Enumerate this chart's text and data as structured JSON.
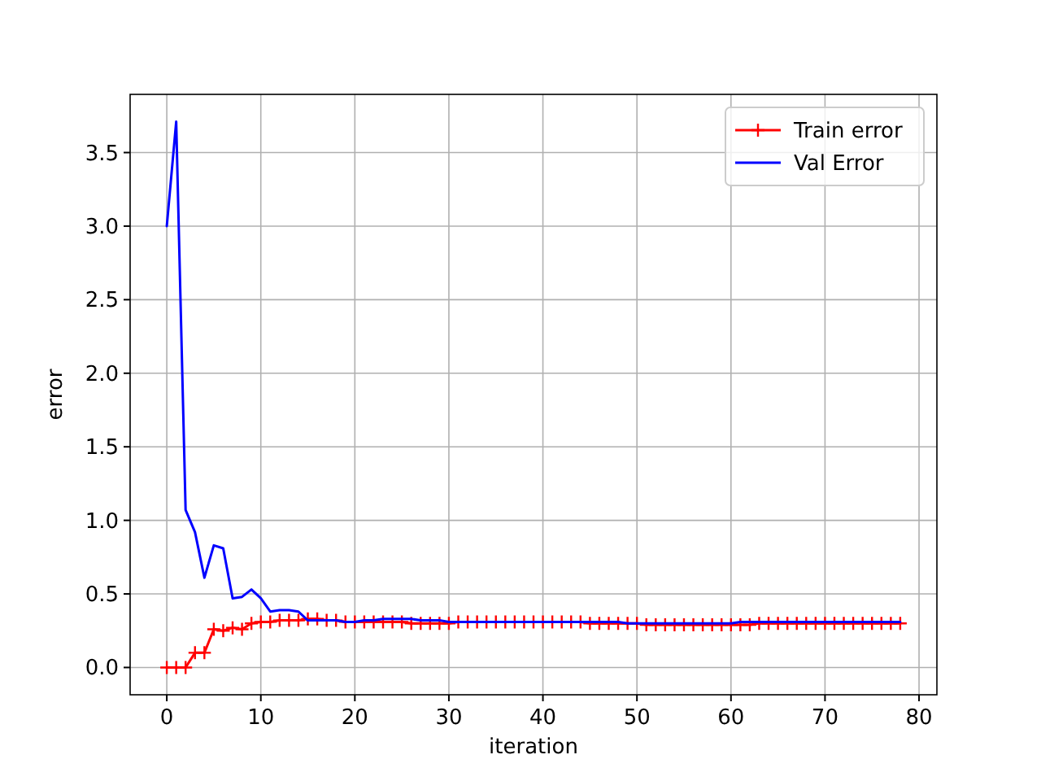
{
  "chart_data": {
    "type": "line",
    "xlabel": "iteration",
    "ylabel": "error",
    "x": [
      0,
      1,
      2,
      3,
      4,
      5,
      6,
      7,
      8,
      9,
      10,
      11,
      12,
      13,
      14,
      15,
      16,
      17,
      18,
      19,
      20,
      21,
      22,
      23,
      24,
      25,
      26,
      27,
      28,
      29,
      30,
      31,
      32,
      33,
      34,
      35,
      36,
      37,
      38,
      39,
      40,
      41,
      42,
      43,
      44,
      45,
      46,
      47,
      48,
      49,
      50,
      51,
      52,
      53,
      54,
      55,
      56,
      57,
      58,
      59,
      60,
      61,
      62,
      63,
      64,
      65,
      66,
      67,
      68,
      69,
      70,
      71,
      72,
      73,
      74,
      75,
      76,
      77,
      78
    ],
    "series": [
      {
        "name": "Train error",
        "color": "#ff0000",
        "marker": "cross",
        "values": [
          0,
          0,
          0,
          0.1,
          0.1,
          0.26,
          0.25,
          0.27,
          0.26,
          0.3,
          0.31,
          0.31,
          0.32,
          0.32,
          0.32,
          0.33,
          0.33,
          0.32,
          0.32,
          0.31,
          0.31,
          0.31,
          0.31,
          0.31,
          0.31,
          0.31,
          0.3,
          0.3,
          0.3,
          0.3,
          0.3,
          0.31,
          0.31,
          0.31,
          0.31,
          0.31,
          0.31,
          0.31,
          0.31,
          0.31,
          0.31,
          0.31,
          0.31,
          0.31,
          0.31,
          0.3,
          0.3,
          0.3,
          0.3,
          0.3,
          0.3,
          0.29,
          0.29,
          0.29,
          0.29,
          0.29,
          0.29,
          0.29,
          0.29,
          0.29,
          0.29,
          0.29,
          0.29,
          0.3,
          0.3,
          0.3,
          0.3,
          0.3,
          0.3,
          0.3,
          0.3,
          0.3,
          0.3,
          0.3,
          0.3,
          0.3,
          0.3,
          0.3,
          0.3
        ]
      },
      {
        "name": "Val Error",
        "color": "#0000ff",
        "marker": "none",
        "values": [
          3.0,
          3.71,
          1.07,
          0.92,
          0.61,
          0.83,
          0.81,
          0.47,
          0.48,
          0.53,
          0.47,
          0.38,
          0.39,
          0.39,
          0.38,
          0.32,
          0.32,
          0.32,
          0.32,
          0.31,
          0.31,
          0.32,
          0.32,
          0.33,
          0.33,
          0.33,
          0.33,
          0.32,
          0.32,
          0.32,
          0.31,
          0.31,
          0.31,
          0.31,
          0.31,
          0.31,
          0.31,
          0.31,
          0.31,
          0.31,
          0.31,
          0.31,
          0.31,
          0.31,
          0.31,
          0.31,
          0.31,
          0.31,
          0.31,
          0.3,
          0.3,
          0.3,
          0.3,
          0.3,
          0.3,
          0.3,
          0.3,
          0.3,
          0.3,
          0.3,
          0.3,
          0.31,
          0.31,
          0.31,
          0.31,
          0.31,
          0.31,
          0.31,
          0.31,
          0.31,
          0.31,
          0.31,
          0.31,
          0.31,
          0.31,
          0.31,
          0.31,
          0.31,
          0.31
        ]
      }
    ],
    "xlim": [
      -3.9,
      81.9
    ],
    "ylim": [
      -0.1855,
      3.8955
    ],
    "xticks": [
      0,
      10,
      20,
      30,
      40,
      50,
      60,
      70,
      80
    ],
    "yticks": [
      {
        "value": 0,
        "label": "0.0"
      },
      {
        "value": 0.5,
        "label": "0.5"
      },
      {
        "value": 1,
        "label": "1.0"
      },
      {
        "value": 1.5,
        "label": "1.5"
      },
      {
        "value": 2,
        "label": "2.0"
      },
      {
        "value": 2.5,
        "label": "2.5"
      },
      {
        "value": 3,
        "label": "3.0"
      },
      {
        "value": 3.5,
        "label": "3.5"
      }
    ],
    "grid": true,
    "legend": "top right"
  }
}
